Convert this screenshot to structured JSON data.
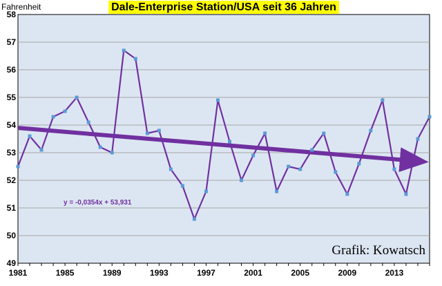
{
  "chart_data": {
    "type": "line",
    "title": "Dale-Enterprise Station/USA seit 36 Jahren",
    "ylabel": "Fahrenheit",
    "xlabel": "",
    "ylim": [
      49,
      58
    ],
    "yticks": [
      49,
      50,
      51,
      52,
      53,
      54,
      55,
      56,
      57,
      58
    ],
    "xticks": [
      1981,
      1985,
      1989,
      1993,
      1997,
      2001,
      2005,
      2009,
      2013
    ],
    "xlim": [
      1981,
      2016
    ],
    "grid": true,
    "legend": "none",
    "series": [
      {
        "x": [
          1981,
          1982,
          1983,
          1984,
          1985,
          1986,
          1987,
          1988,
          1989,
          1990,
          1991,
          1992,
          1993,
          1994,
          1995,
          1996,
          1997,
          1998,
          1999,
          2000,
          2001,
          2002,
          2003,
          2004,
          2005,
          2006,
          2007,
          2008,
          2009,
          2010,
          2011,
          2012,
          2013,
          2014,
          2015,
          2016
        ],
        "values": [
          52.5,
          53.6,
          53.1,
          54.3,
          54.5,
          55.0,
          54.1,
          53.2,
          53.0,
          56.7,
          56.4,
          53.7,
          53.8,
          52.4,
          51.8,
          50.6,
          51.6,
          54.9,
          53.4,
          52.0,
          52.9,
          53.7,
          51.6,
          52.5,
          52.4,
          53.1,
          53.7,
          52.3,
          51.5,
          52.6,
          53.8,
          54.9,
          52.4,
          51.5,
          53.5,
          54.3
        ]
      }
    ],
    "trendline": {
      "slope": -0.0354,
      "intercept": 53.931,
      "equation": "y = -0,0354x + 53,931"
    },
    "annotation": "Grafik: Kowatsch",
    "colors": {
      "line": "#7030a0",
      "marker": "#5b9bd5",
      "trend": "#7030a0",
      "plot_bg": "#dce6f2",
      "grid": "#a6a6a6",
      "title_bg": "#ffff00",
      "equation": "#7030a0"
    }
  }
}
